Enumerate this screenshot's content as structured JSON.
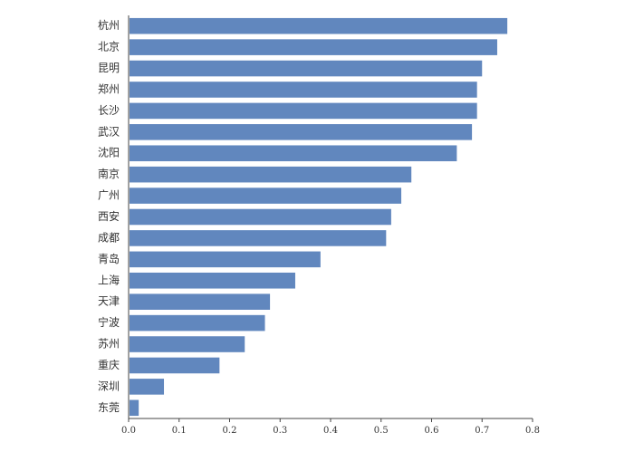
{
  "chart_data": {
    "type": "bar",
    "orientation": "horizontal",
    "categories": [
      "杭州",
      "北京",
      "昆明",
      "郑州",
      "长沙",
      "武汉",
      "沈阳",
      "南京",
      "广州",
      "西安",
      "成都",
      "青岛",
      "上海",
      "天津",
      "宁波",
      "苏州",
      "重庆",
      "深圳",
      "东莞"
    ],
    "values": [
      0.75,
      0.73,
      0.7,
      0.69,
      0.69,
      0.68,
      0.65,
      0.56,
      0.54,
      0.52,
      0.51,
      0.38,
      0.33,
      0.28,
      0.27,
      0.23,
      0.18,
      0.07,
      0.02
    ],
    "xlim": [
      0,
      0.8
    ],
    "xticks": [
      "0.0",
      "0.1",
      "0.2",
      "0.3",
      "0.4",
      "0.5",
      "0.6",
      "0.7",
      "0.8"
    ],
    "bar_color": "#6187be",
    "grid": false,
    "legend": "none",
    "title": "",
    "xlabel": "",
    "ylabel": ""
  }
}
